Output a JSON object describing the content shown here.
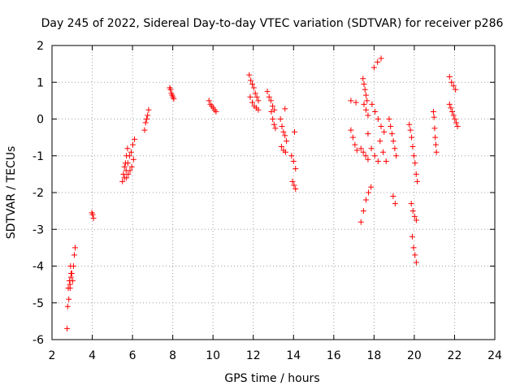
{
  "chart_data": {
    "type": "scatter",
    "title": "Day 245 of 2022, Sidereal Day-to-day VTEC variation (SDTVAR) for receiver p286",
    "xlabel": "GPS time / hours",
    "ylabel": "SDTVAR / TECUs",
    "xlim": [
      2,
      24
    ],
    "ylim": [
      -6,
      2
    ],
    "xticks": [
      "2",
      "4",
      "6",
      "8",
      "10",
      "12",
      "14",
      "16",
      "18",
      "20",
      "22",
      "24"
    ],
    "yticks": [
      "2",
      "1",
      "0",
      "-1",
      "-2",
      "-3",
      "-4",
      "-5",
      "-6"
    ],
    "grid": true,
    "marker": "+",
    "color": "#ff0000",
    "series": [
      {
        "name": "SDTVAR",
        "segments": [
          {
            "x0": 2.75,
            "x1": 2.95,
            "y": [
              -5.7,
              -5.1,
              -4.6,
              -4.9,
              -4.4,
              -4.5,
              -4.0,
              -4.2
            ]
          },
          {
            "x0": 2.9,
            "x1": 3.15,
            "y": [
              -4.6,
              -4.3,
              -4.2,
              -4.4,
              -4.0,
              -3.7,
              -3.5
            ]
          },
          {
            "x0": 3.98,
            "x1": 4.06,
            "y": [
              -2.55,
              -2.6,
              -2.7
            ]
          },
          {
            "x0": 5.5,
            "x1": 5.75,
            "y": [
              -1.7,
              -1.5,
              -1.3,
              -1.2,
              -1.0,
              -0.8
            ]
          },
          {
            "x0": 5.6,
            "x1": 6.1,
            "y": [
              -1.6,
              -1.4,
              -1.2,
              -1.0,
              -0.9,
              -0.7,
              -0.55
            ]
          },
          {
            "x0": 5.7,
            "x1": 6.05,
            "y": [
              -1.6,
              -1.5,
              -1.4,
              -1.3,
              -1.1
            ]
          },
          {
            "x0": 6.6,
            "x1": 6.8,
            "y": [
              -0.3,
              -0.1,
              0.0,
              0.1,
              0.25
            ]
          },
          {
            "x0": 7.85,
            "x1": 8.05,
            "y": [
              0.85,
              0.8,
              0.7,
              0.65,
              0.6,
              0.55
            ]
          },
          {
            "x0": 9.8,
            "x1": 10.15,
            "y": [
              0.5,
              0.4,
              0.35,
              0.3,
              0.25,
              0.2
            ]
          },
          {
            "x0": 11.8,
            "x1": 12.25,
            "y": [
              1.2,
              1.05,
              0.95,
              0.85,
              0.7,
              0.6,
              0.5
            ]
          },
          {
            "x0": 11.85,
            "x1": 12.25,
            "y": [
              0.6,
              0.45,
              0.35,
              0.3,
              0.25
            ]
          },
          {
            "x0": 12.7,
            "x1": 13.05,
            "y": [
              0.75,
              0.6,
              0.5,
              0.35,
              0.25
            ]
          },
          {
            "x0": 12.9,
            "x1": 13.1,
            "y": [
              0.2,
              0.0,
              -0.15,
              -0.25
            ]
          },
          {
            "x0": 13.35,
            "x1": 13.65,
            "y": [
              0.0,
              -0.2,
              -0.35,
              -0.45,
              -0.6
            ]
          },
          {
            "x0": 13.4,
            "x1": 13.6,
            "y": [
              -0.75,
              -0.85,
              -0.9
            ]
          },
          {
            "x0": 13.55,
            "x1": 13.6,
            "y": [
              0.28
            ]
          },
          {
            "x0": 14.0,
            "x1": 14.1,
            "y": [
              -0.35
            ]
          },
          {
            "x0": 13.9,
            "x1": 14.1,
            "y": [
              -1.0,
              -1.15,
              -1.35
            ]
          },
          {
            "x0": 13.95,
            "x1": 14.1,
            "y": [
              -1.7,
              -1.8,
              -1.9
            ]
          },
          {
            "x0": 16.85,
            "x1": 17.1,
            "y": [
              0.5,
              0.45
            ]
          },
          {
            "x0": 16.85,
            "x1": 17.15,
            "y": [
              -0.3,
              -0.5,
              -0.7,
              -0.85
            ]
          },
          {
            "x0": 17.45,
            "x1": 17.65,
            "y": [
              1.1,
              0.95,
              0.8,
              0.65,
              0.5
            ]
          },
          {
            "x0": 17.5,
            "x1": 17.7,
            "y": [
              0.4,
              0.25,
              0.1
            ]
          },
          {
            "x0": 17.35,
            "x1": 17.7,
            "y": [
              -0.8,
              -0.9,
              -1.0,
              -1.1
            ]
          },
          {
            "x0": 17.35,
            "x1": 17.85,
            "y": [
              -2.8,
              -2.5,
              -2.2,
              -2.0,
              -1.85
            ]
          },
          {
            "x0": 17.7,
            "x1": 18.2,
            "y": [
              -0.4,
              -0.8,
              -1.0,
              -1.15
            ]
          },
          {
            "x0": 18.0,
            "x1": 18.35,
            "y": [
              1.4,
              1.55,
              1.65
            ]
          },
          {
            "x0": 17.9,
            "x1": 18.5,
            "y": [
              0.4,
              0.2,
              0.0,
              -0.2,
              -0.35
            ]
          },
          {
            "x0": 18.3,
            "x1": 18.6,
            "y": [
              -0.6,
              -0.9,
              -1.15
            ]
          },
          {
            "x0": 18.75,
            "x1": 19.1,
            "y": [
              0.0,
              -0.2,
              -0.4,
              -0.6,
              -0.8,
              -1.0
            ]
          },
          {
            "x0": 18.95,
            "x1": 19.05,
            "y": [
              -2.1,
              -2.3
            ]
          },
          {
            "x0": 19.75,
            "x1": 20.15,
            "y": [
              -0.15,
              -0.3,
              -0.5,
              -0.75,
              -1.0,
              -1.2,
              -1.5,
              -1.7
            ]
          },
          {
            "x0": 19.85,
            "x1": 20.1,
            "y": [
              -2.3,
              -2.5,
              -2.65,
              -2.75
            ]
          },
          {
            "x0": 19.9,
            "x1": 20.1,
            "y": [
              -3.2,
              -3.5,
              -3.7,
              -3.9
            ]
          },
          {
            "x0": 20.95,
            "x1": 21.1,
            "y": [
              0.2,
              0.05,
              -0.25,
              -0.5,
              -0.7,
              -0.9
            ]
          },
          {
            "x0": 21.75,
            "x1": 22.05,
            "y": [
              1.15,
              1.0,
              0.9,
              0.8
            ]
          },
          {
            "x0": 21.75,
            "x1": 22.15,
            "y": [
              0.4,
              0.3,
              0.2,
              0.1,
              0.0,
              -0.1,
              -0.2
            ]
          }
        ]
      }
    ]
  }
}
